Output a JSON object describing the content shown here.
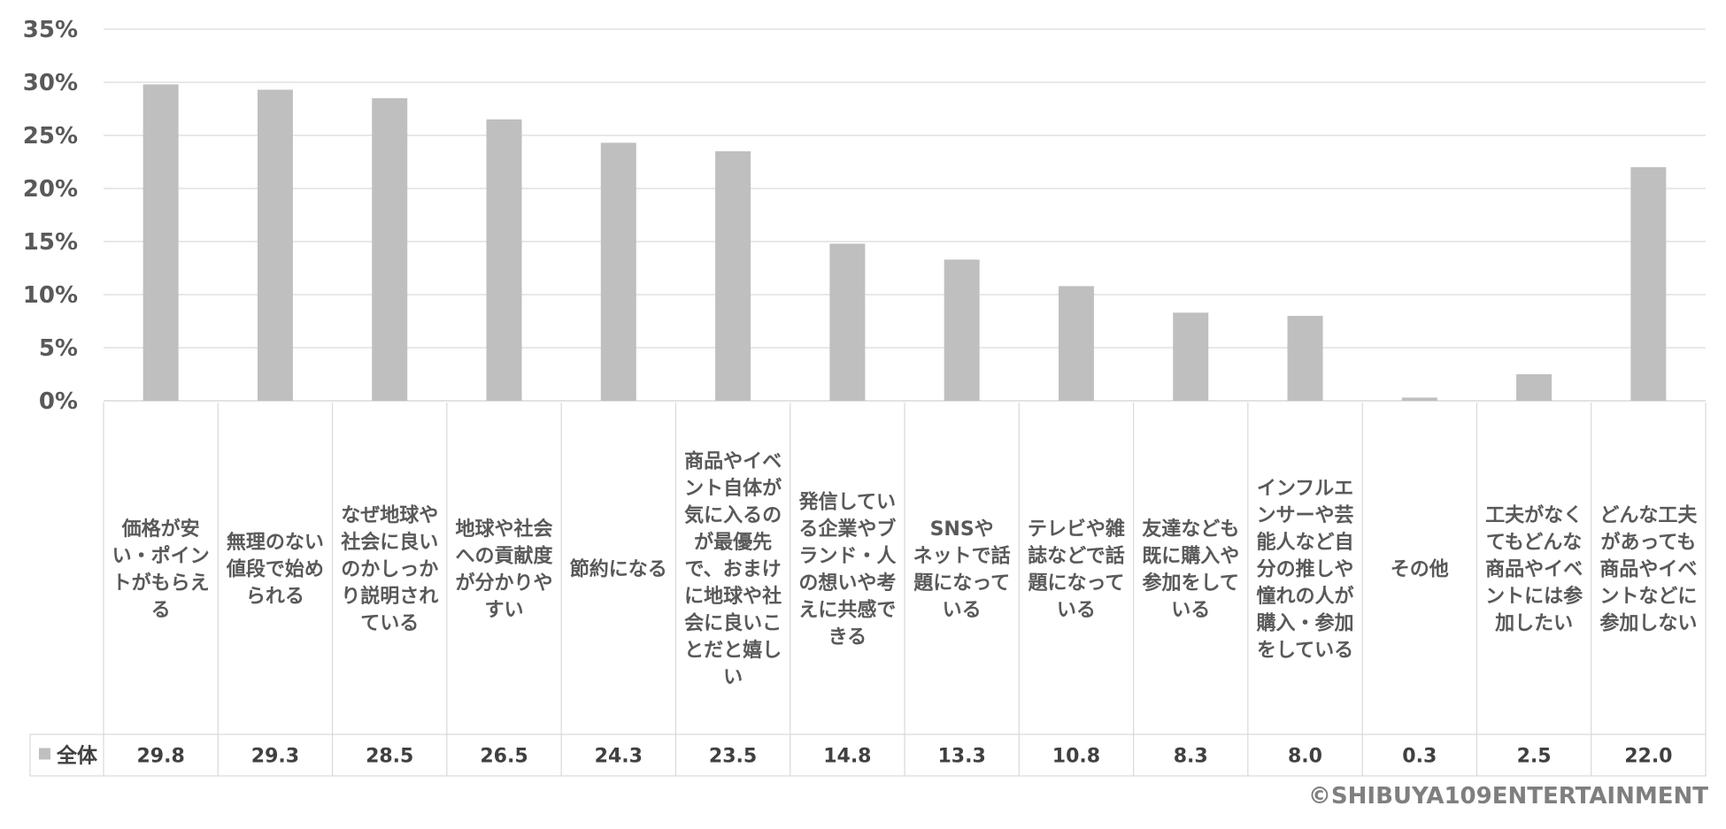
{
  "chart_data": {
    "type": "bar",
    "categories": [
      "価格が安い・ポイントがもらえる",
      "無理のない値段で始められる",
      "なぜ地球や社会に良いのかしっかり説明されている",
      "地球や社会への貢献度が分かりやすい",
      "節約になる",
      "商品やイベント自体が気に入るのが最優先で、おまけに地球や社会に良いことだと嬉しい",
      "発信している企業やブランド・人の想いや考えに共感できる",
      "SNSやネットで話題になっている",
      "テレビや雑誌などで話題になっている",
      "友達なども既に購入や参加をしている",
      "インフルエンサーや芸能人など自分の推しや憧れの人が購入・参加をしている",
      "その他",
      "工夫がなくてもどんな商品やイベントには参加したい",
      "どんな工夫があっても商品やイベントなどに参加しない"
    ],
    "category_lines": [
      [
        "価格が安",
        "い・ポイン",
        "トがもらえ",
        "る"
      ],
      [
        "無理のない",
        "値段で始め",
        "られる"
      ],
      [
        "なぜ地球や",
        "社会に良い",
        "のかしっか",
        "り説明され",
        "ている"
      ],
      [
        "地球や社会",
        "への貢献度",
        "が分かりや",
        "すい"
      ],
      [
        "節約になる"
      ],
      [
        "商品やイベ",
        "ント自体が",
        "気に入るの",
        "が最優先",
        "で、おまけ",
        "に地球や社",
        "会に良いこ",
        "とだと嬉し",
        "い"
      ],
      [
        "発信してい",
        "る企業やブ",
        "ランド・人",
        "の想いや考",
        "えに共感で",
        "きる"
      ],
      [
        "SNSや",
        "ネットで話",
        "題になって",
        "いる"
      ],
      [
        "テレビや雑",
        "誌などで話",
        "題になって",
        "いる"
      ],
      [
        "友達なども",
        "既に購入や",
        "参加をして",
        "いる"
      ],
      [
        "インフルエ",
        "ンサーや芸",
        "能人など自",
        "分の推しや",
        "憧れの人が",
        "購入・参加",
        "をしている"
      ],
      [
        "その他"
      ],
      [
        "工夫がなく",
        "てもどんな",
        "商品やイベ",
        "ントには参",
        "加したい"
      ],
      [
        "どんな工夫",
        "があっても",
        "商品やイベ",
        "ントなどに",
        "参加しない"
      ]
    ],
    "series": [
      {
        "name": "全体",
        "values": [
          29.8,
          29.3,
          28.5,
          26.5,
          24.3,
          23.5,
          14.8,
          13.3,
          10.8,
          8.3,
          8.0,
          0.3,
          2.5,
          22.0
        ],
        "value_labels": [
          "29.8",
          "29.3",
          "28.5",
          "26.5",
          "24.3",
          "23.5",
          "14.8",
          "13.3",
          "10.8",
          "8.3",
          "8.0",
          "0.3",
          "2.5",
          "22.0"
        ],
        "color": "#bfbfbf"
      }
    ],
    "y_ticks": [
      "0%",
      "5%",
      "10%",
      "15%",
      "20%",
      "25%",
      "30%",
      "35%"
    ],
    "ylim": [
      0,
      35
    ],
    "grid": true,
    "data_table": true
  },
  "copyright": "©SHIBUYA109ENTERTAINMENT",
  "colors": {
    "bar": "#bfbfbf",
    "grid": "#d9d9d9",
    "text": "#595959"
  }
}
